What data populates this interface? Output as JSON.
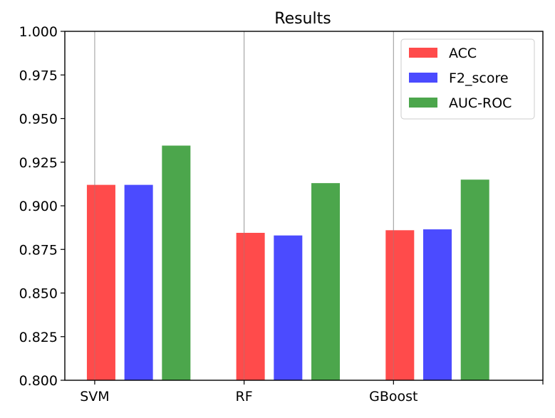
{
  "chart_data": {
    "type": "bar",
    "title": "Results",
    "xlabel": "",
    "ylabel": "",
    "categories": [
      "SVM",
      "RF",
      "GBoost"
    ],
    "ylim": [
      0.8,
      1.0
    ],
    "yticks": [
      "0.800",
      "0.825",
      "0.850",
      "0.875",
      "0.900",
      "0.925",
      "0.950",
      "0.975",
      "1.000"
    ],
    "grid": "x",
    "legend_position": "top-right",
    "series": [
      {
        "name": "ACC",
        "color": "#ff4b4b",
        "values": [
          0.912,
          0.8845,
          0.886
        ]
      },
      {
        "name": "F2_score",
        "color": "#4b4bff",
        "values": [
          0.912,
          0.883,
          0.8865
        ]
      },
      {
        "name": "AUC-ROC",
        "color": "#4ca64c",
        "values": [
          0.9345,
          0.913,
          0.915
        ]
      }
    ]
  }
}
